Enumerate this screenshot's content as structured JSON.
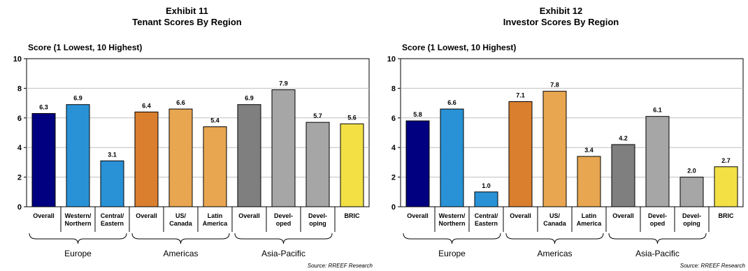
{
  "source": "Source: RREEF Research",
  "colors": {
    "europe_overall": "#000080",
    "europe_sub": "#2992d6",
    "americas_overall": "#d97f2e",
    "americas_sub": "#e8a650",
    "asia_overall": "#7f7f7f",
    "asia_sub": "#a6a6a6",
    "bric": "#f2e045",
    "grid": "#c0c0c0"
  },
  "chart_data": [
    {
      "type": "bar",
      "exhibit": "Exhibit 11",
      "title": "Tenant Scores By Region",
      "ylabel": "Score (1 Lowest, 10 Highest)",
      "ylim": [
        0,
        10
      ],
      "yticks": [
        "0",
        "2",
        "4",
        "6",
        "8",
        "10"
      ],
      "grid": true,
      "categories": [
        "Overall",
        "Western/\nNorthern",
        "Central/\nEastern",
        "Overall",
        "US/\nCanada",
        "Latin\nAmerica",
        "Overall",
        "Devel-\noped",
        "Devel-\noping",
        "BRIC"
      ],
      "values": [
        6.3,
        6.9,
        3.1,
        6.4,
        6.6,
        5.4,
        6.9,
        7.9,
        5.7,
        5.6
      ],
      "value_labels": [
        "6.3",
        "6.9",
        "3.1",
        "6.4",
        "6.6",
        "5.4",
        "6.9",
        "7.9",
        "5.7",
        "5.6"
      ],
      "bar_colors": [
        "europe_overall",
        "europe_sub",
        "europe_sub",
        "americas_overall",
        "americas_sub",
        "americas_sub",
        "asia_overall",
        "asia_sub",
        "asia_sub",
        "bric"
      ],
      "groups": [
        {
          "name": "Europe",
          "start": 0,
          "end": 2
        },
        {
          "name": "Americas",
          "start": 3,
          "end": 5
        },
        {
          "name": "Asia-Pacific",
          "start": 6,
          "end": 8
        }
      ]
    },
    {
      "type": "bar",
      "exhibit": "Exhibit 12",
      "title": "Investor Scores By Region",
      "ylabel": "Score (1 Lowest, 10 Highest)",
      "ylim": [
        0,
        10
      ],
      "yticks": [
        "0",
        "2",
        "4",
        "6",
        "8",
        "10"
      ],
      "grid": true,
      "categories": [
        "Overall",
        "Western/\nNorthern",
        "Central/\nEastern",
        "Overall",
        "US/\nCanada",
        "Latin\nAmerica",
        "Overall",
        "Devel-\noped",
        "Devel-\noping",
        "BRIC"
      ],
      "values": [
        5.8,
        6.6,
        1.0,
        7.1,
        7.8,
        3.4,
        4.2,
        6.1,
        2.0,
        2.7
      ],
      "value_labels": [
        "5.8",
        "6.6",
        "1.0",
        "7.1",
        "7.8",
        "3.4",
        "4.2",
        "6.1",
        "2.0",
        "2.7"
      ],
      "bar_colors": [
        "europe_overall",
        "europe_sub",
        "europe_sub",
        "americas_overall",
        "americas_sub",
        "americas_sub",
        "asia_overall",
        "asia_sub",
        "asia_sub",
        "bric"
      ],
      "groups": [
        {
          "name": "Europe",
          "start": 0,
          "end": 2
        },
        {
          "name": "Americas",
          "start": 3,
          "end": 5
        },
        {
          "name": "Asia-Pacific",
          "start": 6,
          "end": 8
        }
      ]
    }
  ]
}
